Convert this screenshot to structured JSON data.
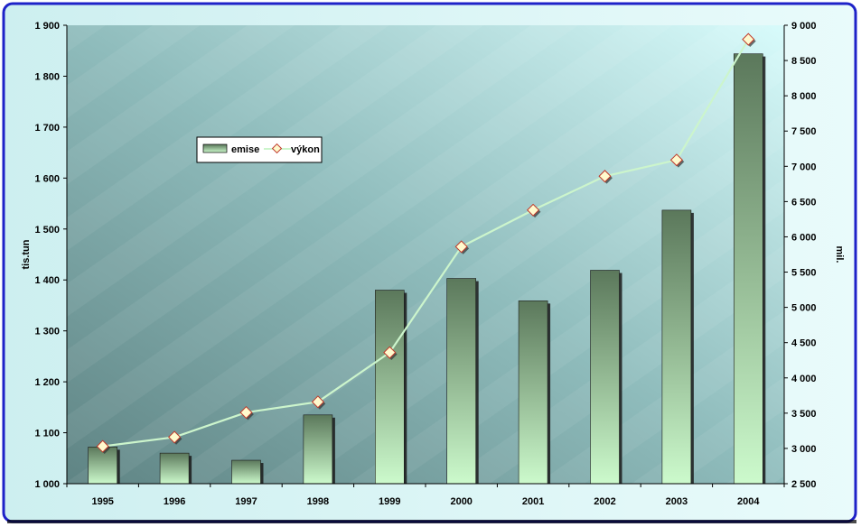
{
  "chart_data": {
    "type": "bar",
    "categories": [
      "1995",
      "1996",
      "1997",
      "1998",
      "1999",
      "2000",
      "2001",
      "2002",
      "2003",
      "2004"
    ],
    "series": [
      {
        "name": "emise",
        "type": "bar",
        "axis": "left",
        "values": [
          1072,
          1060,
          1046,
          1135,
          1380,
          1403,
          1359,
          1419,
          1537,
          1844
        ]
      },
      {
        "name": "výkon",
        "type": "line",
        "axis": "right",
        "values": [
          3030,
          3160,
          3510,
          3660,
          4360,
          5860,
          6380,
          6860,
          7090,
          8800
        ]
      }
    ],
    "ylabel": "tis.tun",
    "y2label": "mil.",
    "ylim": [
      1000,
      1900
    ],
    "y2lim": [
      2500,
      9000
    ],
    "yticks": [
      "1 000",
      "1 100",
      "1 200",
      "1 300",
      "1 400",
      "1 500",
      "1 600",
      "1 700",
      "1 800",
      "1 900"
    ],
    "y2ticks": [
      "2 500",
      "3 000",
      "3 500",
      "4 000",
      "4 500",
      "5 000",
      "5 500",
      "6 000",
      "6 500",
      "7 000",
      "7 500",
      "8 000",
      "8 500",
      "9 000"
    ],
    "legend": {
      "position": "top-left",
      "entries": [
        "emise",
        "výkon"
      ]
    },
    "colors": {
      "bar_top": "#5c7a5c",
      "bar_bottom": "#c8f8c8",
      "line": "#ccf5cc",
      "marker_fill": "#fffacd",
      "marker_stroke": "#c0392b",
      "frame_border": "#1e22c8"
    },
    "grid": false
  }
}
